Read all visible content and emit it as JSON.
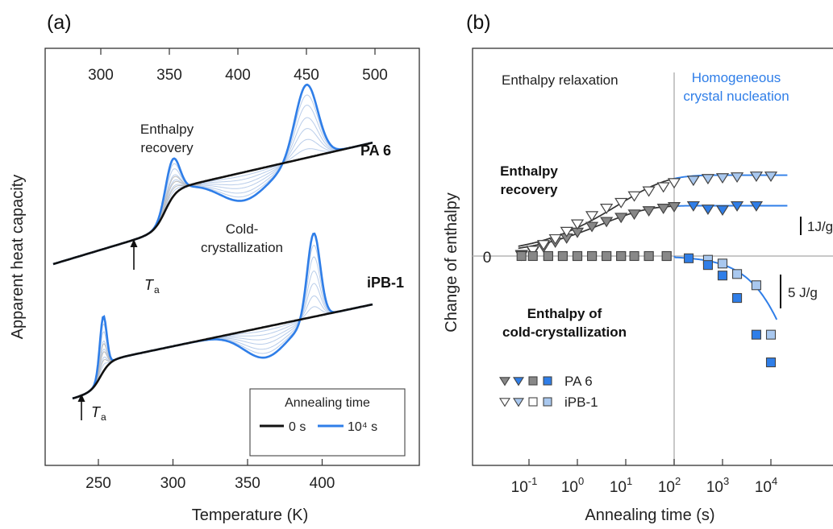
{
  "panel_a": {
    "label": "(a)",
    "top_ticks": [
      "300",
      "350",
      "400",
      "450",
      "500"
    ],
    "bottom_ticks": [
      "250",
      "300",
      "350",
      "400"
    ],
    "xlabel": "Temperature (K)",
    "ylabel": "Apparent heat capacity",
    "pa6_label": "PA 6",
    "ipb_label": "iPB-1",
    "enthalpy_recovery": [
      "Enthalpy",
      "recovery"
    ],
    "cold_crystallization": [
      "Cold-",
      "crystallization"
    ],
    "ta_symbol": "T",
    "ta_subscript": "a",
    "legend": {
      "title": "Annealing time",
      "entries": [
        {
          "label": "0 s",
          "color": "#111111"
        },
        {
          "label": "10⁴ s",
          "color": "#2f7ee8"
        }
      ]
    }
  },
  "panel_b": {
    "label": "(b)",
    "xlabel": "Annealing time (s)",
    "ylabel": "Change of enthalpy",
    "x_ticks": [
      {
        "base": "10",
        "exp": "-1"
      },
      {
        "base": "10",
        "exp": "0"
      },
      {
        "base": "10",
        "exp": "1"
      },
      {
        "base": "10",
        "exp": "2"
      },
      {
        "base": "10",
        "exp": "3"
      },
      {
        "base": "10",
        "exp": "4"
      }
    ],
    "zero_label": "0",
    "scale_1": "1J/g",
    "scale_5": "5 J/g",
    "enthalpy_relaxation": "Enthalpy relaxation",
    "homogeneous": [
      "Homogeneous",
      "crystal nucleation"
    ],
    "recovery": [
      "Enthalpy",
      "recovery"
    ],
    "cold_cryst": [
      "Enthalpy of",
      "cold-crystallization"
    ],
    "legend": [
      {
        "label": "PA 6"
      },
      {
        "label": "iPB-1"
      }
    ]
  },
  "chart_data": [
    {
      "type": "line",
      "title": "",
      "xlabel": "Temperature (K)",
      "ylabel": "Apparent heat capacity",
      "x_axis_bottom": {
        "label": "Temperature (K)",
        "ticks": [
          250,
          300,
          350,
          400
        ],
        "applies_to": "iPB-1"
      },
      "x_axis_top": {
        "ticks": [
          300,
          350,
          400,
          450,
          500
        ],
        "applies_to": "PA 6"
      },
      "series": [
        {
          "name": "0 s",
          "color": "#111111"
        },
        {
          "name": "10⁴ s",
          "color": "#2f7ee8"
        }
      ],
      "annotations": [
        "PA 6",
        "iPB-1",
        "Enthalpy recovery",
        "Cold-crystallization",
        "Ta"
      ],
      "features": {
        "iPB-1": {
          "Ta_K": 241,
          "recovery_peak_K": 271,
          "cold_crystallization_dip_K": 350,
          "melting_peak_K": 389
        },
        "PA 6": {
          "Ta_K": 322,
          "recovery_peak_K": 358,
          "cold_crystallization_dip_K": 410,
          "melting_peak_K": 468
        }
      }
    },
    {
      "type": "scatter",
      "title": "",
      "xlabel": "Annealing time (s)",
      "ylabel": "Change of enthalpy",
      "xscale": "log",
      "xlim": [
        0.02,
        100000
      ],
      "grid": false,
      "divider_x": 100,
      "scale_bars": [
        "1J/g",
        "5 J/g"
      ],
      "series": [
        {
          "name": "PA 6",
          "quantity": "Enthalpy recovery",
          "unit": "J/g",
          "color": "#888888",
          "x": [
            0.07,
            0.12,
            0.2,
            0.35,
            0.6,
            1,
            2,
            4,
            8,
            15,
            30,
            60,
            100,
            250,
            500,
            1000,
            2000,
            5000
          ],
          "y": [
            0.1,
            0.3,
            0.55,
            0.85,
            1.1,
            1.45,
            1.8,
            2.1,
            2.35,
            2.55,
            2.75,
            2.9,
            3.0,
            3.05,
            2.85,
            2.8,
            3.05,
            3.05
          ]
        },
        {
          "name": "iPB-1",
          "quantity": "Enthalpy recovery",
          "unit": "J/g",
          "color": "#ffffff",
          "x": [
            0.07,
            0.12,
            0.2,
            0.35,
            0.6,
            1,
            2,
            4,
            8,
            15,
            30,
            60,
            100,
            250,
            500,
            1000,
            2000,
            5000,
            10000
          ],
          "y": [
            0.05,
            0.35,
            0.7,
            1.05,
            1.5,
            1.95,
            2.45,
            2.9,
            3.25,
            3.65,
            3.95,
            4.2,
            4.45,
            4.6,
            4.7,
            4.75,
            4.8,
            4.85,
            4.85
          ]
        },
        {
          "name": "PA 6",
          "quantity": "Enthalpy of cold-crystallization",
          "unit": "J/g",
          "color": "#888888",
          "x": [
            0.07,
            0.12,
            0.25,
            0.5,
            1,
            2,
            4,
            8,
            15,
            30,
            70
          ],
          "y": [
            0,
            0,
            0,
            0,
            0,
            0,
            0,
            0,
            0,
            0,
            0
          ]
        },
        {
          "name": "PA 6",
          "quantity": "Enthalpy of cold-crystallization",
          "unit": "J/g",
          "color": "#2f7ee8",
          "x": [
            200,
            500,
            1000,
            2000,
            5000,
            10000
          ],
          "y": [
            -0.3,
            -1.2,
            -2.6,
            -5.6,
            -10.5,
            -14.2
          ]
        },
        {
          "name": "iPB-1",
          "quantity": "Enthalpy of cold-crystallization",
          "unit": "J/g",
          "color": "#ffffff",
          "x": [
            0.25,
            0.5,
            1,
            2,
            4,
            8,
            30,
            70
          ],
          "y": [
            0,
            0,
            0,
            0,
            0,
            0,
            0,
            0
          ]
        },
        {
          "name": "iPB-1",
          "quantity": "Enthalpy of cold-crystallization",
          "unit": "J/g",
          "color": "#a9c8ef",
          "x": [
            500,
            1000,
            2000,
            5000,
            10000
          ],
          "y": [
            -0.5,
            -1.0,
            -2.4,
            -3.9,
            -10.5
          ]
        }
      ]
    }
  ]
}
